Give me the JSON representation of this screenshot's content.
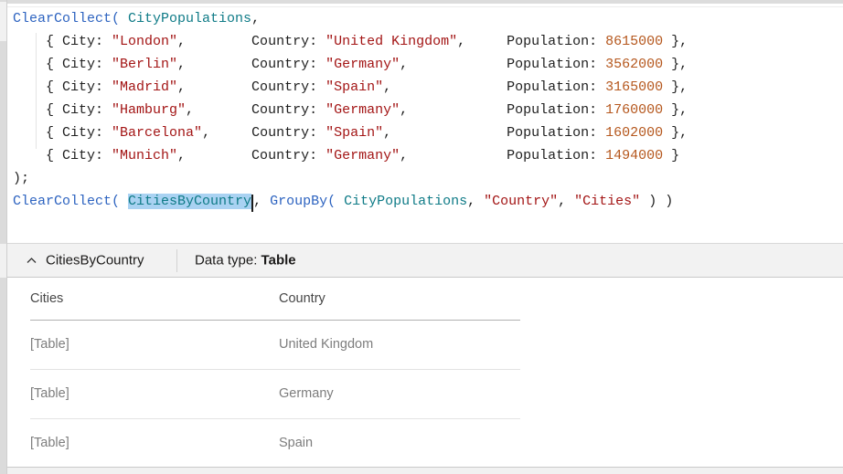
{
  "colors": {
    "func-color": "#2d63c0",
    "ident-color": "#0f7b87",
    "str-color": "#a31515",
    "num-color": "#b5571d",
    "plain-color": "#1f1f1f",
    "selection-color": "#a9d2f2",
    "panel-band-bg": "#f2f2f2",
    "editor-bg": "#ffffff"
  },
  "editor": {
    "selection": {
      "text": "CitiesByCountry",
      "caret_after_selection": true
    },
    "lines": [
      {
        "tokens": [
          {
            "type": "func",
            "text": "ClearCollect( "
          },
          {
            "type": "ident",
            "text": "CityPopulations"
          },
          {
            "type": "plain",
            "text": ","
          }
        ]
      },
      {
        "tokens": [
          {
            "type": "plain",
            "text": "    { City: "
          },
          {
            "type": "str",
            "text": "\"London\""
          },
          {
            "type": "plain",
            "text": ",        Country: "
          },
          {
            "type": "str",
            "text": "\"United Kingdom\""
          },
          {
            "type": "plain",
            "text": ",     Population: "
          },
          {
            "type": "num",
            "text": "8615000"
          },
          {
            "type": "plain",
            "text": " },"
          }
        ]
      },
      {
        "tokens": [
          {
            "type": "plain",
            "text": "    { City: "
          },
          {
            "type": "str",
            "text": "\"Berlin\""
          },
          {
            "type": "plain",
            "text": ",        Country: "
          },
          {
            "type": "str",
            "text": "\"Germany\""
          },
          {
            "type": "plain",
            "text": ",            Population: "
          },
          {
            "type": "num",
            "text": "3562000"
          },
          {
            "type": "plain",
            "text": " },"
          }
        ]
      },
      {
        "tokens": [
          {
            "type": "plain",
            "text": "    { City: "
          },
          {
            "type": "str",
            "text": "\"Madrid\""
          },
          {
            "type": "plain",
            "text": ",        Country: "
          },
          {
            "type": "str",
            "text": "\"Spain\""
          },
          {
            "type": "plain",
            "text": ",              Population: "
          },
          {
            "type": "num",
            "text": "3165000"
          },
          {
            "type": "plain",
            "text": " },"
          }
        ]
      },
      {
        "tokens": [
          {
            "type": "plain",
            "text": "    { City: "
          },
          {
            "type": "str",
            "text": "\"Hamburg\""
          },
          {
            "type": "plain",
            "text": ",       Country: "
          },
          {
            "type": "str",
            "text": "\"Germany\""
          },
          {
            "type": "plain",
            "text": ",            Population: "
          },
          {
            "type": "num",
            "text": "1760000"
          },
          {
            "type": "plain",
            "text": " },"
          }
        ]
      },
      {
        "tokens": [
          {
            "type": "plain",
            "text": "    { City: "
          },
          {
            "type": "str",
            "text": "\"Barcelona\""
          },
          {
            "type": "plain",
            "text": ",     Country: "
          },
          {
            "type": "str",
            "text": "\"Spain\""
          },
          {
            "type": "plain",
            "text": ",              Population: "
          },
          {
            "type": "num",
            "text": "1602000"
          },
          {
            "type": "plain",
            "text": " },"
          }
        ]
      },
      {
        "tokens": [
          {
            "type": "plain",
            "text": "    { City: "
          },
          {
            "type": "str",
            "text": "\"Munich\""
          },
          {
            "type": "plain",
            "text": ",        Country: "
          },
          {
            "type": "str",
            "text": "\"Germany\""
          },
          {
            "type": "plain",
            "text": ",            Population: "
          },
          {
            "type": "num",
            "text": "1494000"
          },
          {
            "type": "plain",
            "text": " }"
          }
        ]
      },
      {
        "tokens": [
          {
            "type": "plain",
            "text": ");"
          }
        ]
      },
      {
        "tokens": [
          {
            "type": "func",
            "text": "ClearCollect( "
          },
          {
            "type": "ident-sel",
            "text": "CitiesByCountry"
          },
          {
            "type": "caret",
            "text": ""
          },
          {
            "type": "plain",
            "text": ", "
          },
          {
            "type": "func",
            "text": "GroupBy( "
          },
          {
            "type": "ident",
            "text": "CityPopulations"
          },
          {
            "type": "plain",
            "text": ", "
          },
          {
            "type": "str",
            "text": "\"Country\""
          },
          {
            "type": "plain",
            "text": ", "
          },
          {
            "type": "str",
            "text": "\"Cities\""
          },
          {
            "type": "plain",
            "text": " ) )"
          }
        ]
      }
    ]
  },
  "panel": {
    "collapse_icon": "chevron-up",
    "name": "CitiesByCountry",
    "datatype_label": "Data type: ",
    "datatype_value": "Table"
  },
  "result_table": {
    "columns": [
      "Cities",
      "Country"
    ],
    "rows": [
      [
        "[Table]",
        "United Kingdom"
      ],
      [
        "[Table]",
        "Germany"
      ],
      [
        "[Table]",
        "Spain"
      ]
    ]
  }
}
